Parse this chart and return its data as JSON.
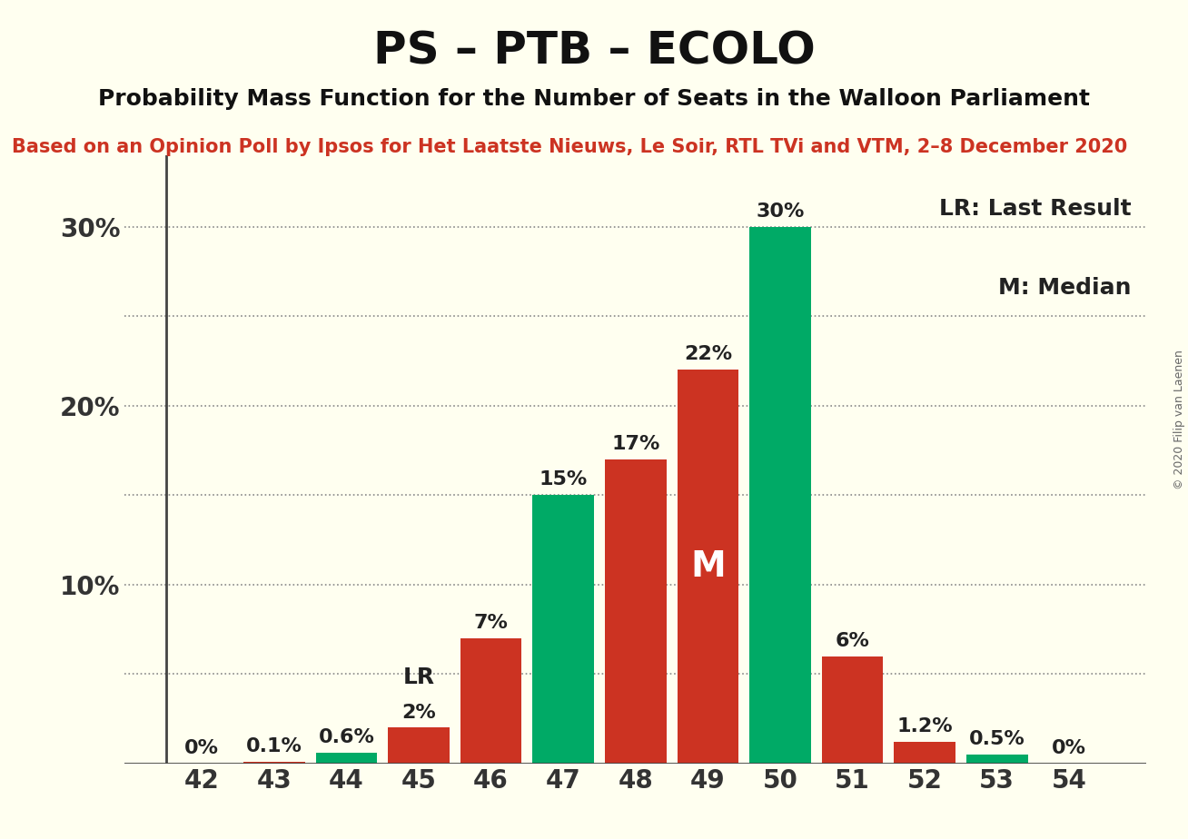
{
  "title": "PS – PTB – ECOLO",
  "subtitle": "Probability Mass Function for the Number of Seats in the Walloon Parliament",
  "source": "Based on an Opinion Poll by Ipsos for Het Laatste Nieuws, Le Soir, RTL TVi and VTM, 2–8 December 2020",
  "copyright": "© 2020 Filip van Laenen",
  "seats": [
    42,
    43,
    44,
    45,
    46,
    47,
    48,
    49,
    50,
    51,
    52,
    53,
    54
  ],
  "values": [
    0.0,
    0.1,
    0.6,
    2.0,
    7.0,
    15.0,
    17.0,
    22.0,
    30.0,
    6.0,
    1.2,
    0.5,
    0.0
  ],
  "bar_colors": [
    "#cc3322",
    "#cc3322",
    "#00aa66",
    "#cc3322",
    "#cc3322",
    "#00aa66",
    "#cc3322",
    "#cc3322",
    "#00aa66",
    "#cc3322",
    "#cc3322",
    "#00aa66",
    "#cc3322"
  ],
  "lr_seat": 45,
  "median_seat": 49,
  "legend_lr": "LR: Last Result",
  "legend_m": "M: Median",
  "background_color": "#fffff0",
  "title_color": "#111111",
  "subtitle_color": "#111111",
  "source_color": "#cc3322",
  "yticks": [
    10,
    20,
    30
  ],
  "dotted_lines": [
    5,
    10,
    15,
    20,
    25,
    30
  ],
  "title_fontsize": 36,
  "subtitle_fontsize": 18,
  "source_fontsize": 15,
  "axis_fontsize": 20,
  "bar_label_fontsize": 16,
  "legend_fontsize": 18,
  "lr_label_fontsize": 18,
  "m_label_fontsize": 28,
  "copyright_fontsize": 9
}
